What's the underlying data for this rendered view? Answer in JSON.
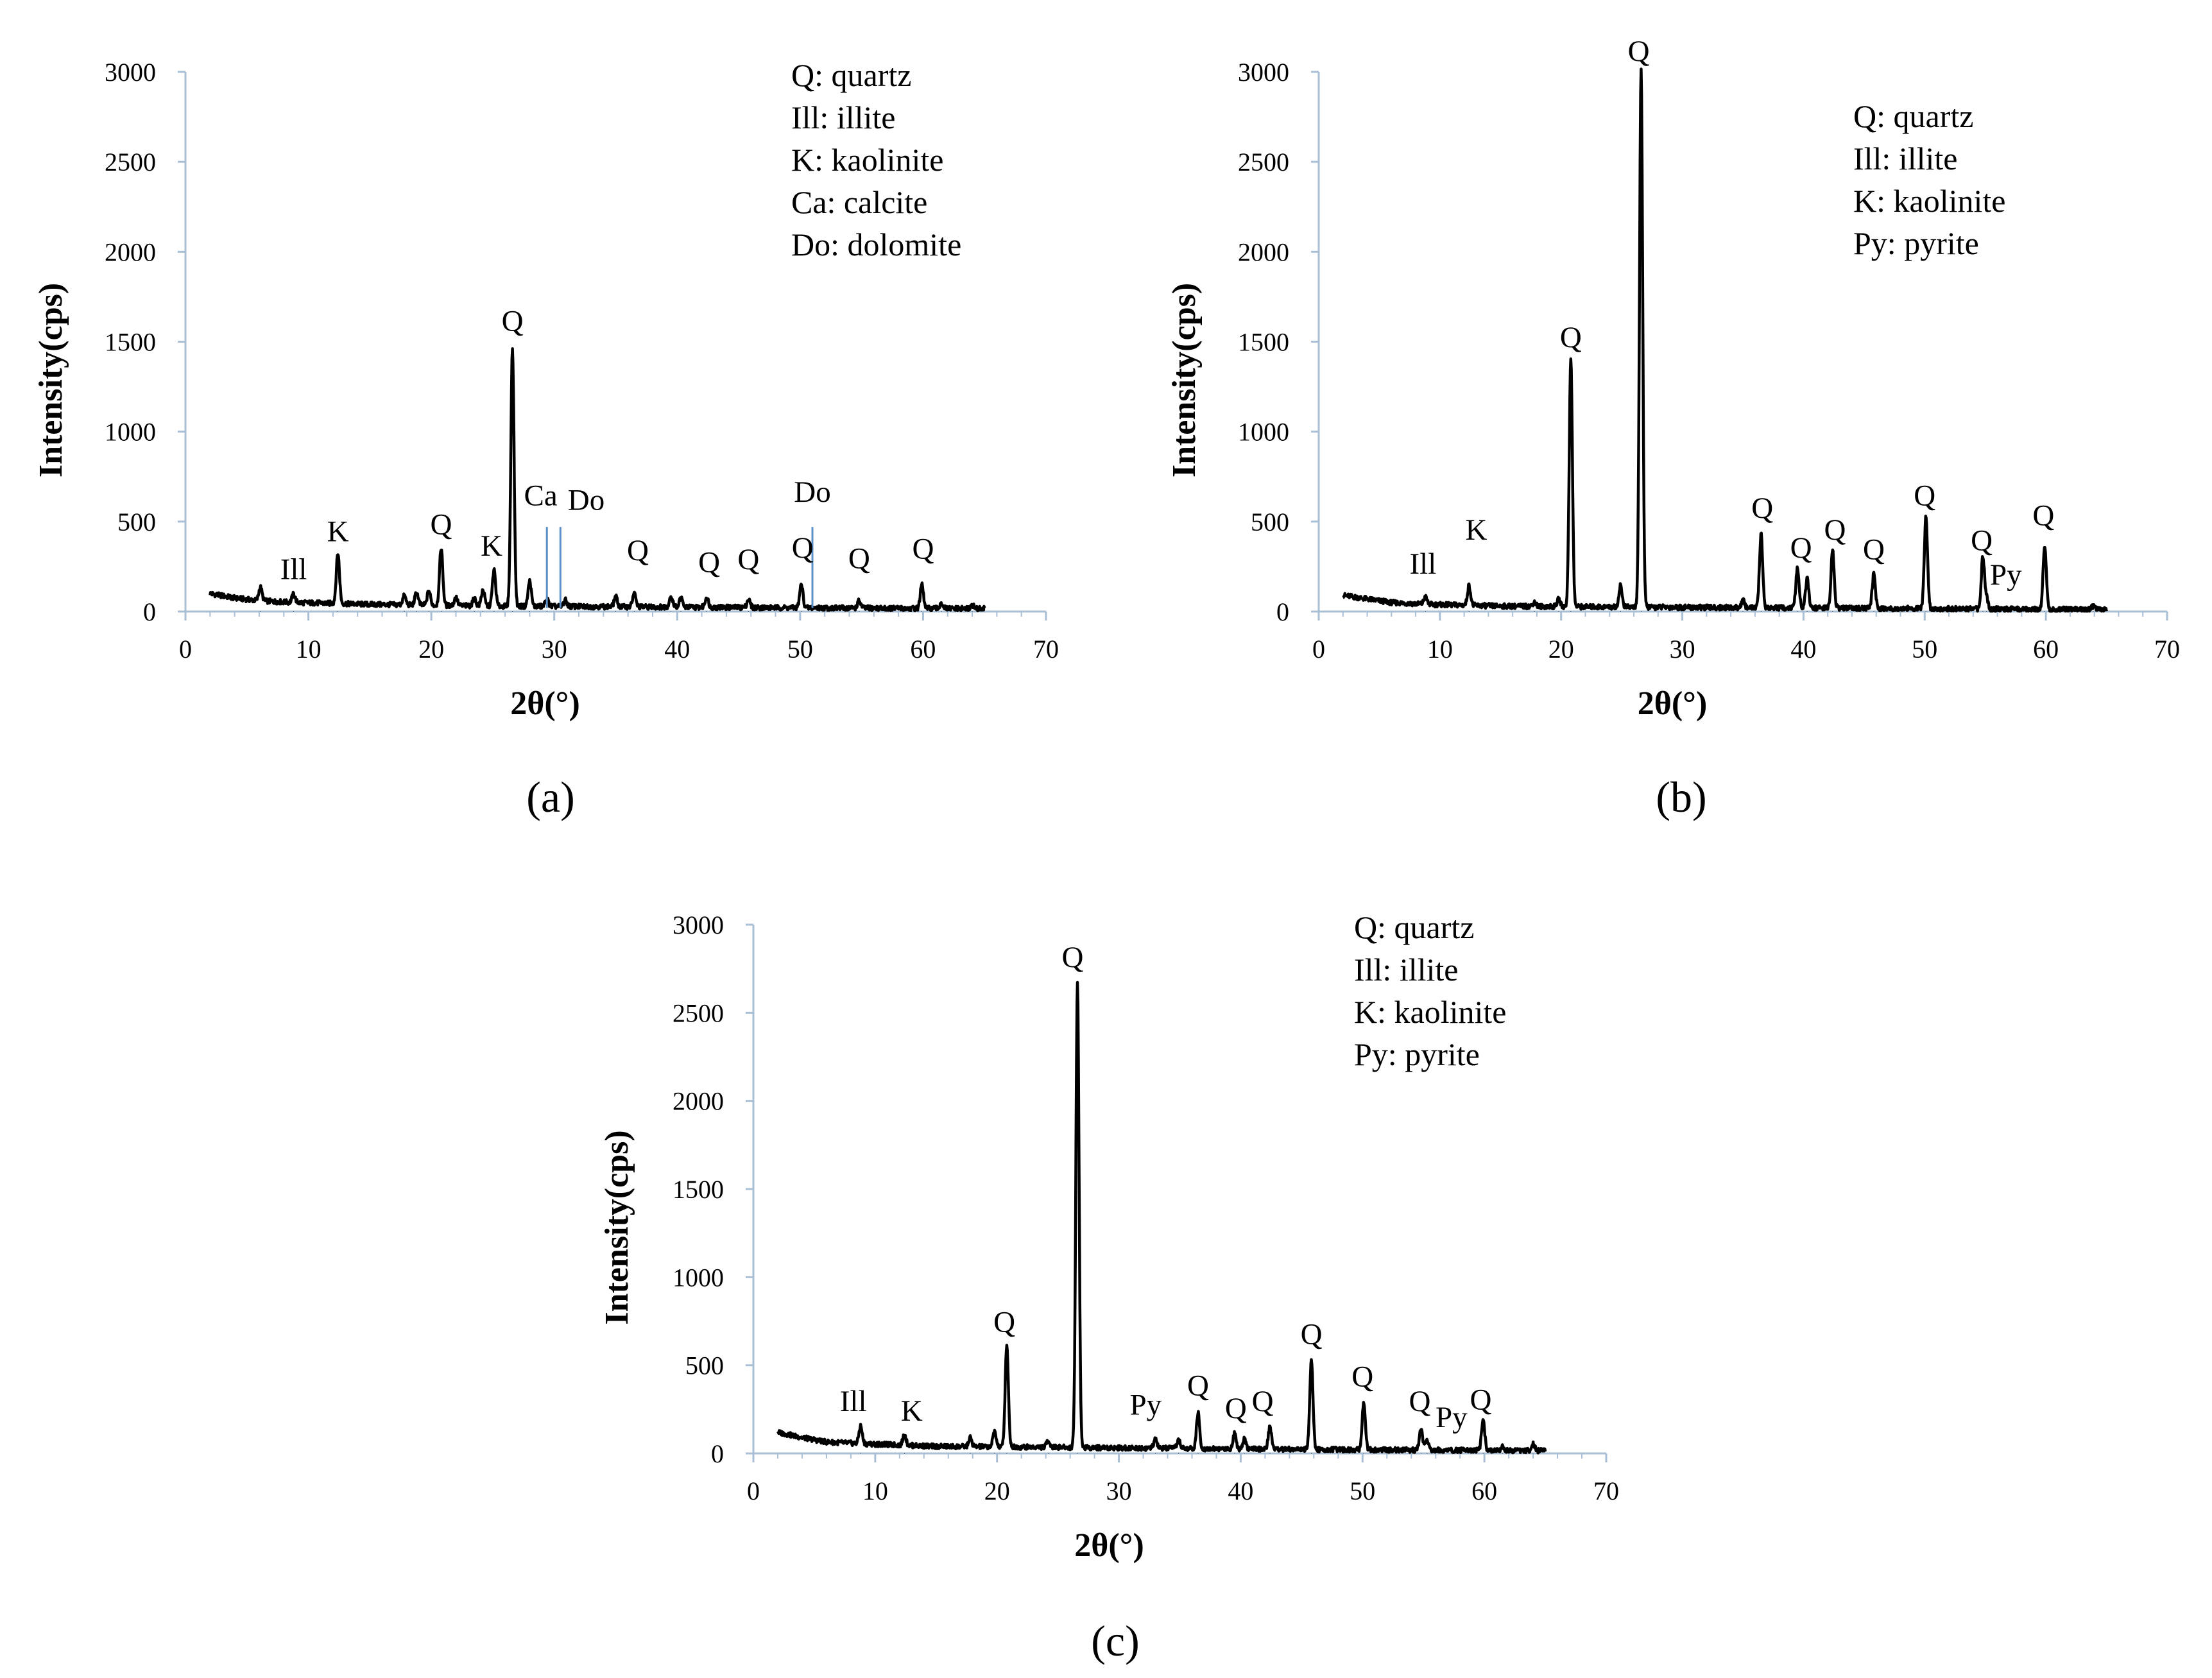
{
  "colors": {
    "axis": "#a9bfd6",
    "trace": "#000000",
    "marker_line": "#5b8fc7"
  },
  "chart_data": [
    {
      "id": "a",
      "type": "line",
      "caption": "(a)",
      "xlabel": "2θ(°)",
      "ylabel": "Intensity(cps)",
      "xlim": [
        0,
        70
      ],
      "ylim": [
        0,
        3000
      ],
      "xticks": [
        "0",
        "10",
        "20",
        "30",
        "40",
        "50",
        "60",
        "70"
      ],
      "yticks": [
        "0",
        "500",
        "1000",
        "1500",
        "2000",
        "2500",
        "3000"
      ],
      "legend": [
        "Q: quartz",
        "Ill: illite",
        "K: kaolinite",
        "Ca: calcite",
        "Do: dolomite"
      ],
      "baseline": [
        [
          2,
          100
        ],
        [
          4,
          75
        ],
        [
          6,
          60
        ],
        [
          9,
          50
        ],
        [
          15,
          40
        ],
        [
          25,
          30
        ],
        [
          40,
          25
        ],
        [
          65,
          15
        ]
      ],
      "peaks": [
        [
          6.1,
          75
        ],
        [
          8.8,
          45
        ],
        [
          12.4,
          280
        ],
        [
          17.8,
          50
        ],
        [
          18.8,
          70
        ],
        [
          19.8,
          80
        ],
        [
          20.8,
          320
        ],
        [
          22.0,
          45
        ],
        [
          23.5,
          40
        ],
        [
          24.2,
          90
        ],
        [
          25.1,
          200
        ],
        [
          26.6,
          1440
        ],
        [
          28.0,
          140
        ],
        [
          29.4,
          40
        ],
        [
          30.9,
          35
        ],
        [
          35.0,
          55
        ],
        [
          36.5,
          75
        ],
        [
          39.5,
          60
        ],
        [
          40.3,
          50
        ],
        [
          42.4,
          55
        ],
        [
          45.8,
          45
        ],
        [
          50.1,
          130
        ],
        [
          54.8,
          40
        ],
        [
          59.9,
          130
        ],
        [
          61.5,
          30
        ],
        [
          64.0,
          20
        ]
      ],
      "peak_labels": [
        {
          "text": "Ill",
          "x": 8.8,
          "y": 180
        },
        {
          "text": "K",
          "x": 12.4,
          "y": 390
        },
        {
          "text": "Q",
          "x": 20.8,
          "y": 430
        },
        {
          "text": "K",
          "x": 24.9,
          "y": 310
        },
        {
          "text": "Q",
          "x": 26.6,
          "y": 1560
        },
        {
          "text": "Ca",
          "x": 28.9,
          "y": 590
        },
        {
          "text": "Do",
          "x": 32.6,
          "y": 565
        },
        {
          "text": "Q",
          "x": 36.8,
          "y": 285
        },
        {
          "text": "Q",
          "x": 42.6,
          "y": 220
        },
        {
          "text": "Q",
          "x": 45.8,
          "y": 235
        },
        {
          "text": "Do",
          "x": 51.0,
          "y": 610
        },
        {
          "text": "Q",
          "x": 50.2,
          "y": 300
        },
        {
          "text": "Q",
          "x": 54.8,
          "y": 240
        },
        {
          "text": "Q",
          "x": 60.0,
          "y": 295
        }
      ],
      "marker_lines": [
        29.4,
        30.5,
        51.0
      ]
    },
    {
      "id": "b",
      "type": "line",
      "caption": "(b)",
      "xlabel": "2θ(°)",
      "ylabel": "Intensity(cps)",
      "xlim": [
        0,
        70
      ],
      "ylim": [
        0,
        3000
      ],
      "xticks": [
        "0",
        "10",
        "20",
        "30",
        "40",
        "50",
        "60",
        "70"
      ],
      "yticks": [
        "0",
        "500",
        "1000",
        "1500",
        "2000",
        "2500",
        "3000"
      ],
      "legend": [
        "Q: quartz",
        "Ill: illite",
        "K: kaolinite",
        "Py: pyrite"
      ],
      "baseline": [
        [
          2,
          90
        ],
        [
          4,
          70
        ],
        [
          6,
          50
        ],
        [
          9,
          40
        ],
        [
          15,
          30
        ],
        [
          25,
          25
        ],
        [
          40,
          20
        ],
        [
          65,
          10
        ]
      ],
      "peaks": [
        [
          8.8,
          40
        ],
        [
          12.4,
          110
        ],
        [
          17.8,
          25
        ],
        [
          19.8,
          40
        ],
        [
          20.8,
          1390
        ],
        [
          24.9,
          120
        ],
        [
          26.6,
          2980
        ],
        [
          35.0,
          40
        ],
        [
          36.5,
          410
        ],
        [
          39.5,
          220
        ],
        [
          40.3,
          160
        ],
        [
          42.4,
          320
        ],
        [
          45.8,
          190
        ],
        [
          50.1,
          510
        ],
        [
          54.8,
          290
        ],
        [
          55.1,
          60
        ],
        [
          59.9,
          360
        ],
        [
          63.9,
          20
        ]
      ],
      "peak_labels": [
        {
          "text": "Ill",
          "x": 8.6,
          "y": 210
        },
        {
          "text": "K",
          "x": 13.0,
          "y": 400
        },
        {
          "text": "Q",
          "x": 20.8,
          "y": 1470
        },
        {
          "text": "Q",
          "x": 26.4,
          "y": 3060
        },
        {
          "text": "Q",
          "x": 36.6,
          "y": 520
        },
        {
          "text": "Q",
          "x": 39.8,
          "y": 300
        },
        {
          "text": "Q",
          "x": 42.6,
          "y": 400
        },
        {
          "text": "Q",
          "x": 45.8,
          "y": 290
        },
        {
          "text": "Q",
          "x": 50.0,
          "y": 590
        },
        {
          "text": "Q",
          "x": 54.7,
          "y": 340
        },
        {
          "text": "Py",
          "x": 56.7,
          "y": 150
        },
        {
          "text": "Q",
          "x": 59.8,
          "y": 480
        }
      ],
      "marker_lines": []
    },
    {
      "id": "c",
      "type": "line",
      "caption": "(c)",
      "xlabel": "2θ(°)",
      "ylabel": "Intensity(cps)",
      "xlim": [
        0,
        70
      ],
      "ylim": [
        0,
        3000
      ],
      "xticks": [
        "0",
        "10",
        "20",
        "30",
        "40",
        "50",
        "60",
        "70"
      ],
      "yticks": [
        "0",
        "500",
        "1000",
        "1500",
        "2000",
        "2500",
        "3000"
      ],
      "legend": [
        "Q: quartz",
        "Ill: illite",
        "K: kaolinite",
        "Py: pyrite"
      ],
      "baseline": [
        [
          2,
          120
        ],
        [
          4,
          90
        ],
        [
          6,
          65
        ],
        [
          9,
          55
        ],
        [
          15,
          40
        ],
        [
          25,
          35
        ],
        [
          40,
          25
        ],
        [
          65,
          15
        ]
      ],
      "peaks": [
        [
          8.8,
          100
        ],
        [
          12.4,
          60
        ],
        [
          17.8,
          50
        ],
        [
          19.8,
          90
        ],
        [
          20.8,
          580
        ],
        [
          24.2,
          40
        ],
        [
          26.6,
          2640
        ],
        [
          33.0,
          50
        ],
        [
          34.9,
          50
        ],
        [
          36.5,
          200
        ],
        [
          39.5,
          90
        ],
        [
          40.3,
          60
        ],
        [
          42.4,
          130
        ],
        [
          45.8,
          510
        ],
        [
          50.1,
          275
        ],
        [
          54.8,
          120
        ],
        [
          55.3,
          60
        ],
        [
          59.9,
          170
        ],
        [
          61.5,
          25
        ],
        [
          64.0,
          40
        ]
      ],
      "peak_labels": [
        {
          "text": "Ill",
          "x": 8.2,
          "y": 240
        },
        {
          "text": "K",
          "x": 13.0,
          "y": 185
        },
        {
          "text": "Q",
          "x": 20.6,
          "y": 690
        },
        {
          "text": "Q",
          "x": 26.2,
          "y": 2760
        },
        {
          "text": "Py",
          "x": 32.2,
          "y": 220
        },
        {
          "text": "Q",
          "x": 36.5,
          "y": 330
        },
        {
          "text": "Q",
          "x": 39.6,
          "y": 200
        },
        {
          "text": "Q",
          "x": 41.8,
          "y": 240
        },
        {
          "text": "Q",
          "x": 45.8,
          "y": 620
        },
        {
          "text": "Q",
          "x": 50.0,
          "y": 380
        },
        {
          "text": "Q",
          "x": 54.7,
          "y": 240
        },
        {
          "text": "Py",
          "x": 57.3,
          "y": 150
        },
        {
          "text": "Q",
          "x": 59.7,
          "y": 250
        }
      ],
      "marker_lines": []
    }
  ]
}
